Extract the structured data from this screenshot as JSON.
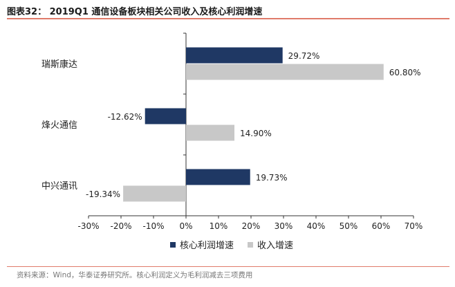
{
  "title": "图表32：  2019Q1 通信设备板块相关公司收入及核心利润增速",
  "source": "资料来源：Wind，华泰证券研究所。核心利润定义为毛利润减去三项费用",
  "colors": {
    "accent_rule": "#e07a6a",
    "series_profit": "#1f3864",
    "series_revenue": "#c8c8c8"
  },
  "chart_data": {
    "type": "bar",
    "orientation": "horizontal",
    "categories": [
      "瑞斯康达",
      "烽火通信",
      "中兴通讯"
    ],
    "series": [
      {
        "name": "核心利润增速",
        "values": [
          29.72,
          -12.62,
          19.73
        ],
        "labels": [
          "29.72%",
          "-12.62%",
          "19.73%"
        ]
      },
      {
        "name": "收入增速",
        "values": [
          60.8,
          14.9,
          -19.34
        ],
        "labels": [
          "60.80%",
          "14.90%",
          "-19.34%"
        ]
      }
    ],
    "xlim": [
      -30,
      70
    ],
    "xticks": [
      -30,
      -20,
      -10,
      0,
      10,
      20,
      30,
      40,
      50,
      60,
      70
    ],
    "xtick_labels": [
      "-30%",
      "-20%",
      "-10%",
      "0%",
      "10%",
      "20%",
      "30%",
      "40%",
      "50%",
      "60%",
      "70%"
    ],
    "legend_position": "bottom",
    "grid": false
  }
}
